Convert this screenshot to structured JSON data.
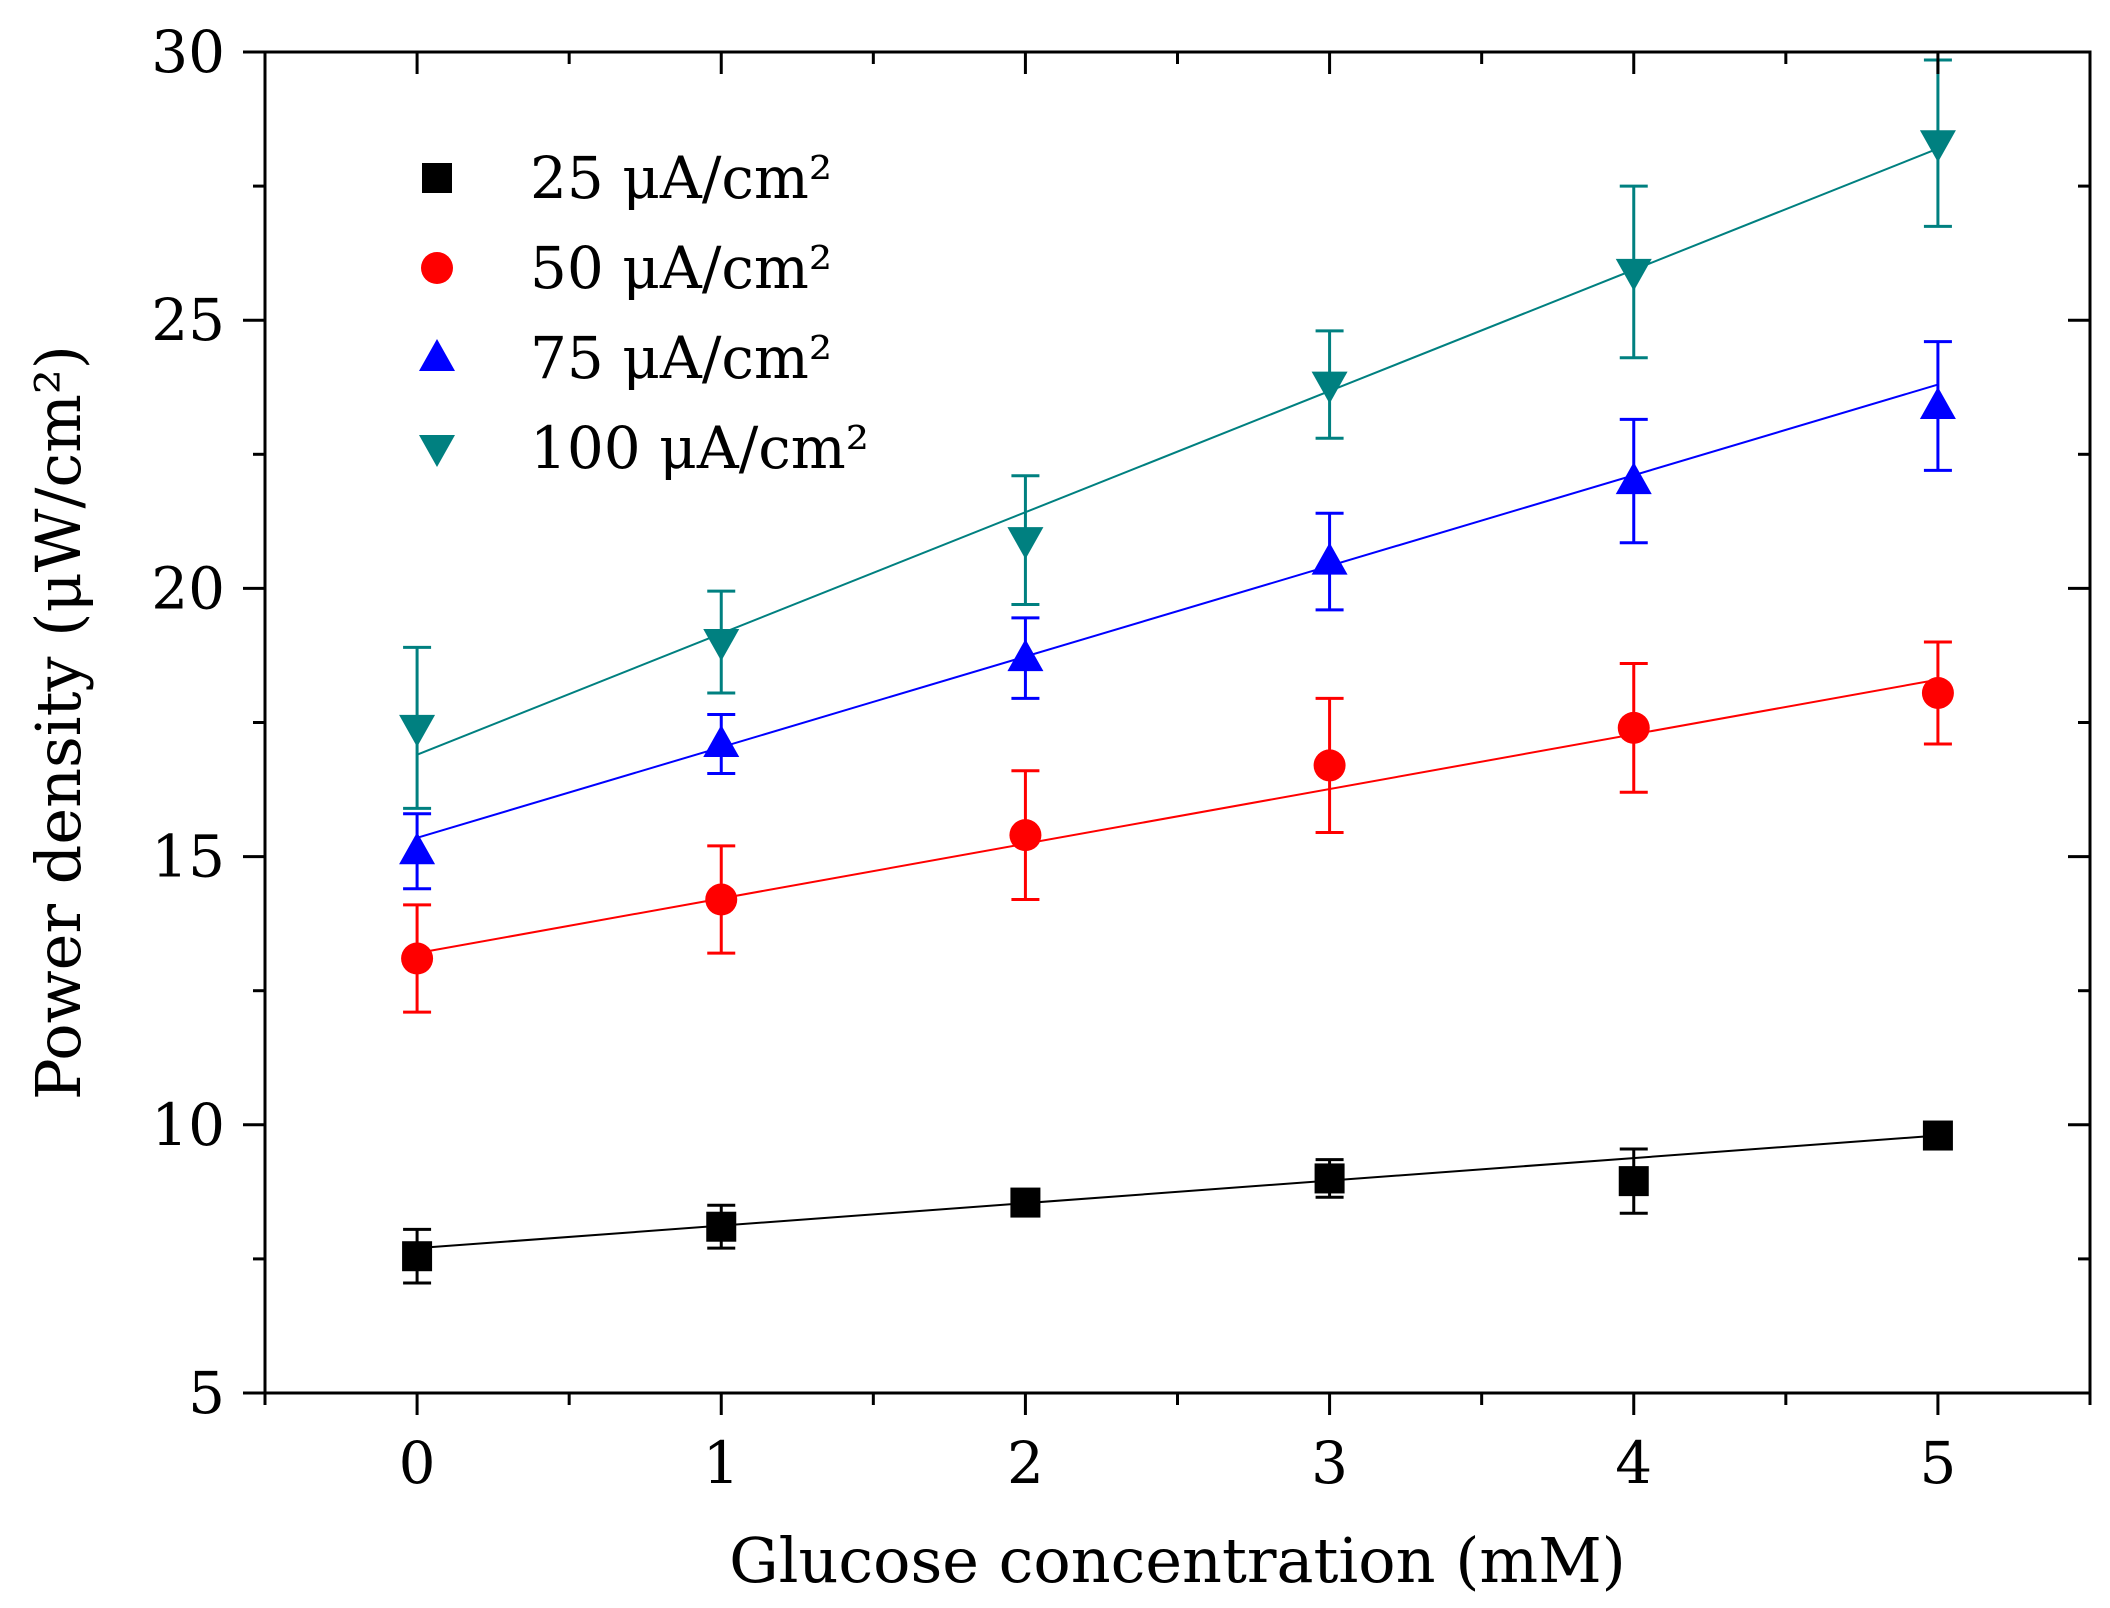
{
  "chart_data": {
    "type": "scatter",
    "title": "",
    "xlabel": "Glucose concentration (mM)",
    "ylabel": "Power density (μW/cm²)",
    "xlim": [
      -0.5,
      5.5
    ],
    "ylim": [
      5,
      30
    ],
    "xticks": [
      0,
      1,
      2,
      3,
      4,
      5
    ],
    "yticks": [
      5,
      10,
      15,
      20,
      25,
      30
    ],
    "xtick_labels": [
      "0",
      "1",
      "2",
      "3",
      "4",
      "5"
    ],
    "ytick_labels": [
      "5",
      "10",
      "15",
      "20",
      "25",
      "30"
    ],
    "grid": false,
    "legend_position": "top-left",
    "x": [
      0,
      1,
      2,
      3,
      4,
      5
    ],
    "series": [
      {
        "name": "25 μA/cm²",
        "color": "#000000",
        "marker": "square",
        "values": [
          7.55,
          8.1,
          8.55,
          9.0,
          8.95,
          9.8
        ],
        "errors": [
          0.5,
          0.4,
          0.15,
          0.35,
          0.6,
          0.1
        ],
        "fit": [
          7.7,
          9.8
        ]
      },
      {
        "name": "50 μA/cm²",
        "color": "#ff0000",
        "marker": "circle",
        "values": [
          13.1,
          14.2,
          15.4,
          16.7,
          17.4,
          18.05
        ],
        "errors": [
          1.0,
          1.0,
          1.2,
          1.25,
          1.2,
          0.95
        ],
        "fit": [
          13.2,
          18.3
        ]
      },
      {
        "name": "75 μA/cm²",
        "color": "#0000ff",
        "marker": "triangle-up",
        "values": [
          15.1,
          17.1,
          18.7,
          20.5,
          22.0,
          23.4
        ],
        "errors": [
          0.7,
          0.55,
          0.75,
          0.9,
          1.15,
          1.2
        ],
        "fit": [
          15.35,
          23.8
        ]
      },
      {
        "name": "100 μA/cm²",
        "color": "#008080",
        "marker": "triangle-down",
        "values": [
          17.4,
          19.0,
          20.9,
          23.8,
          25.9,
          28.3
        ],
        "errors": [
          1.5,
          0.95,
          1.2,
          1.0,
          1.6,
          1.55
        ],
        "fit": [
          16.9,
          28.2
        ]
      }
    ]
  }
}
